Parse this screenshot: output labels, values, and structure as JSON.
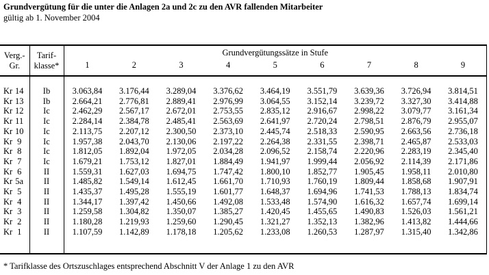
{
  "title": "Grundvergütung für die unter die Anlagen 2a und 2c zu den AVR fallenden Mitarbeiter",
  "subtitle": "gültig ab 1. November 2004",
  "table": {
    "corner_headers": {
      "verg_gr": [
        "Verg.-",
        "Gr."
      ],
      "tarifklasse": [
        "Tarif-",
        "klasse*"
      ]
    },
    "group_header": "Grundvergütungssätze in Stufe",
    "stufe_headers": [
      "1",
      "2",
      "3",
      "4",
      "5",
      "6",
      "7",
      "8",
      "9"
    ],
    "rows": [
      {
        "gruppe": "Kr 14",
        "tarifklasse": "Ib",
        "stufen": [
          "3.063,84",
          "3.176,44",
          "3.289,04",
          "3.376,62",
          "3.464,19",
          "3.551,79",
          "3.639,36",
          "3.726,94",
          "3.814,51"
        ]
      },
      {
        "gruppe": "Kr 13",
        "tarifklasse": "Ib",
        "stufen": [
          "2.664,21",
          "2.776,81",
          "2.889,41",
          "2.976,99",
          "3.064,55",
          "3.152,14",
          "3.239,72",
          "3.327,30",
          "3.414,88"
        ]
      },
      {
        "gruppe": "Kr 12",
        "tarifklasse": "Ic",
        "stufen": [
          "2.462,29",
          "2.567,17",
          "2.672,01",
          "2.753,55",
          "2.835,12",
          "2.916,67",
          "2.998,22",
          "3.079,77",
          "3.161,34"
        ]
      },
      {
        "gruppe": "Kr 11",
        "tarifklasse": "Ic",
        "stufen": [
          "2.284,14",
          "2.384,78",
          "2.485,41",
          "2.563,69",
          "2.641,97",
          "2.720,24",
          "2.798,51",
          "2.876,79",
          "2.955,07"
        ]
      },
      {
        "gruppe": "Kr 10",
        "tarifklasse": "Ic",
        "stufen": [
          "2.113,75",
          "2.207,12",
          "2.300,50",
          "2.373,10",
          "2.445,74",
          "2.518,33",
          "2.590,95",
          "2.663,56",
          "2.736,18"
        ]
      },
      {
        "gruppe": "Kr 9",
        "tarifklasse": "Ic",
        "stufen": [
          "1.957,38",
          "2.043,70",
          "2.130,06",
          "2.197,22",
          "2.264,38",
          "2.331,55",
          "2.398,71",
          "2.465,87",
          "2.533,03"
        ]
      },
      {
        "gruppe": "Kr 8",
        "tarifklasse": "Ic",
        "stufen": [
          "1.812,05",
          "1.892,04",
          "1.972,05",
          "2.034,28",
          "2.096,52",
          "2.158,74",
          "2.220,96",
          "2.283,19",
          "2.345,40"
        ]
      },
      {
        "gruppe": "Kr 7",
        "tarifklasse": "Ic",
        "stufen": [
          "1.679,21",
          "1.753,12",
          "1.827,01",
          "1.884,49",
          "1.941,97",
          "1.999,44",
          "2.056,92",
          "2.114,39",
          "2.171,86"
        ]
      },
      {
        "gruppe": "Kr 6",
        "tarifklasse": "II",
        "stufen": [
          "1.559,31",
          "1.627,03",
          "1.694,75",
          "1.747,42",
          "1.800,10",
          "1.852,77",
          "1.905,45",
          "1.958,11",
          "2.010,80"
        ]
      },
      {
        "gruppe": "Kr 5a",
        "tarifklasse": "II",
        "stufen": [
          "1.485,82",
          "1.549,14",
          "1.612,45",
          "1.661,70",
          "1.710,93",
          "1.760,19",
          "1.809,44",
          "1.858,68",
          "1.907,91"
        ]
      },
      {
        "gruppe": "Kr 5",
        "tarifklasse": "II",
        "stufen": [
          "1.435,37",
          "1.495,28",
          "1.555,19",
          "1.601,77",
          "1.648,37",
          "1.694,96",
          "1.741,53",
          "1.788,13",
          "1.834,74"
        ]
      },
      {
        "gruppe": "Kr 4",
        "tarifklasse": "II",
        "stufen": [
          "1.344,17",
          "1.397,42",
          "1.450,66",
          "1.492,08",
          "1.533,48",
          "1.574,90",
          "1.616,32",
          "1.657,74",
          "1.699,14"
        ]
      },
      {
        "gruppe": "Kr 3",
        "tarifklasse": "II",
        "stufen": [
          "1.259,58",
          "1.304,82",
          "1.350,07",
          "1.385,27",
          "1.420,45",
          "1.455,65",
          "1.490,83",
          "1.526,03",
          "1.561,21"
        ]
      },
      {
        "gruppe": "Kr 2",
        "tarifklasse": "II",
        "stufen": [
          "1.180,28",
          "1.219,93",
          "1.259,60",
          "1.290,45",
          "1.321,27",
          "1.352,13",
          "1.382,96",
          "1.413,82",
          "1.444,66"
        ]
      },
      {
        "gruppe": "Kr 1",
        "tarifklasse": "II",
        "stufen": [
          "1.107,59",
          "1.142,89",
          "1.178,18",
          "1.205,62",
          "1.233,08",
          "1.260,53",
          "1.287,97",
          "1.315,40",
          "1.342,86"
        ]
      }
    ]
  },
  "footnote": "* Tarifklasse des Ortszuschlages entsprechend Abschnitt V der Anlage 1 zu den AVR",
  "colors": {
    "text": "#000000",
    "background": "#ffffff",
    "border": "#000000"
  }
}
